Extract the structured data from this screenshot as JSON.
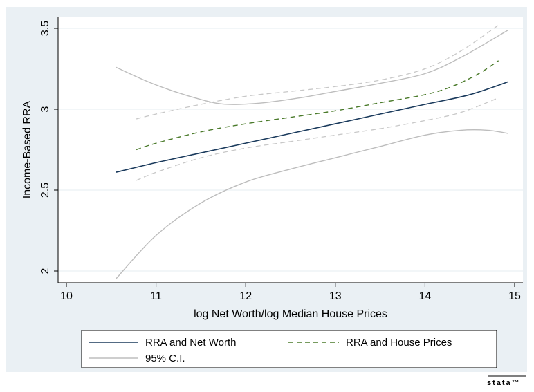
{
  "chart_data": {
    "type": "line",
    "xlabel": "log Net Worth/log Median House Prices",
    "ylabel": "Income-Based RRA",
    "xlim": [
      10,
      15
    ],
    "ylim": [
      2,
      3.5
    ],
    "x_ticks": [
      10,
      11,
      12,
      13,
      14,
      15
    ],
    "x_tick_labels": [
      "10",
      "11",
      "12",
      "13",
      "14",
      "15"
    ],
    "y_ticks": [
      2,
      2.5,
      3,
      3.5
    ],
    "y_tick_labels": [
      "2",
      "2.5",
      "3",
      "3.5"
    ],
    "grid": "horizontal",
    "legend_position": "bottom",
    "legend": [
      {
        "label": "RRA and Net Worth",
        "style": "solid",
        "color": "#1a3a5c"
      },
      {
        "label": "RRA and House Prices",
        "style": "dashed",
        "color": "#4a7a2a"
      },
      {
        "label": "95% C.I.",
        "style": "solid",
        "color": "#bdbdbd"
      }
    ],
    "series": [
      {
        "name": "RRA and Net Worth",
        "color": "#1a3a5c",
        "dash": "none",
        "width": 1.6,
        "points": [
          [
            10.55,
            2.61
          ],
          [
            11.0,
            2.67
          ],
          [
            11.5,
            2.73
          ],
          [
            12.0,
            2.79
          ],
          [
            12.5,
            2.85
          ],
          [
            13.0,
            2.91
          ],
          [
            13.5,
            2.97
          ],
          [
            14.0,
            3.03
          ],
          [
            14.5,
            3.09
          ],
          [
            14.93,
            3.17
          ]
        ]
      },
      {
        "name": "RRA and House Prices",
        "color": "#4a7a2a",
        "dash": "7,5",
        "width": 1.4,
        "points": [
          [
            10.78,
            2.75
          ],
          [
            11.0,
            2.79
          ],
          [
            11.5,
            2.86
          ],
          [
            12.0,
            2.91
          ],
          [
            12.5,
            2.95
          ],
          [
            13.0,
            2.99
          ],
          [
            13.5,
            3.04
          ],
          [
            14.0,
            3.09
          ],
          [
            14.3,
            3.14
          ],
          [
            14.6,
            3.22
          ],
          [
            14.82,
            3.3
          ]
        ]
      },
      {
        "name": "",
        "color": "#bdbdbd",
        "dash": "none",
        "width": 1.4,
        "points": [
          [
            10.55,
            3.26
          ],
          [
            11.0,
            3.15
          ],
          [
            11.5,
            3.06
          ],
          [
            11.8,
            3.03
          ],
          [
            12.2,
            3.04
          ],
          [
            12.6,
            3.07
          ],
          [
            13.0,
            3.11
          ],
          [
            13.5,
            3.16
          ],
          [
            14.0,
            3.22
          ],
          [
            14.4,
            3.32
          ],
          [
            14.93,
            3.49
          ]
        ]
      },
      {
        "name": "",
        "color": "#bdbdbd",
        "dash": "none",
        "width": 1.4,
        "points": [
          [
            10.55,
            1.95
          ],
          [
            11.0,
            2.22
          ],
          [
            11.5,
            2.42
          ],
          [
            12.0,
            2.55
          ],
          [
            12.5,
            2.63
          ],
          [
            13.0,
            2.7
          ],
          [
            13.5,
            2.77
          ],
          [
            14.0,
            2.84
          ],
          [
            14.4,
            2.87
          ],
          [
            14.7,
            2.87
          ],
          [
            14.93,
            2.85
          ]
        ]
      },
      {
        "name": "",
        "color": "#c8c8c8",
        "dash": "7,5",
        "width": 1.3,
        "points": [
          [
            10.78,
            2.94
          ],
          [
            11.0,
            2.97
          ],
          [
            11.5,
            3.03
          ],
          [
            12.0,
            3.08
          ],
          [
            12.5,
            3.11
          ],
          [
            13.0,
            3.14
          ],
          [
            13.5,
            3.18
          ],
          [
            14.0,
            3.25
          ],
          [
            14.4,
            3.36
          ],
          [
            14.82,
            3.52
          ]
        ]
      },
      {
        "name": "",
        "color": "#c8c8c8",
        "dash": "7,5",
        "width": 1.3,
        "points": [
          [
            10.78,
            2.56
          ],
          [
            11.0,
            2.61
          ],
          [
            11.5,
            2.7
          ],
          [
            12.0,
            2.76
          ],
          [
            12.5,
            2.8
          ],
          [
            13.0,
            2.84
          ],
          [
            13.5,
            2.88
          ],
          [
            14.0,
            2.93
          ],
          [
            14.4,
            2.98
          ],
          [
            14.82,
            3.07
          ]
        ]
      }
    ]
  },
  "footer": {
    "brand": "stata™"
  }
}
